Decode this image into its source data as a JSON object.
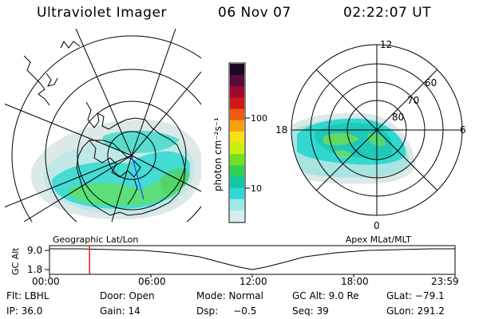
{
  "header": {
    "title": "Ultraviolet Imager",
    "date": "06 Nov 07",
    "time": "02:22:07 UT"
  },
  "colorbar": {
    "unit_label": "photon cm⁻²s⁻¹",
    "ticks": [
      "100",
      "10"
    ],
    "colors": [
      "#1a0826",
      "#5a0a36",
      "#9a0a2a",
      "#d01818",
      "#f05a10",
      "#f8a010",
      "#f8e018",
      "#c8f010",
      "#70e020",
      "#30d050",
      "#10c8a0",
      "#30d8d8",
      "#a0e8e8",
      "#d8eeee"
    ]
  },
  "left_panel": {
    "caption": "Geographic Lat/Lon"
  },
  "right_panel": {
    "caption": "Apex MLat/MLT",
    "mlt_labels": {
      "top": "12",
      "left": "18",
      "right": "6",
      "bottom": "0"
    },
    "mlat_labels": [
      "60",
      "70",
      "80"
    ]
  },
  "timeline": {
    "y_label": "GC Alt",
    "y_ticks": [
      "9.0",
      "1.8"
    ],
    "x_ticks": [
      "00:00",
      "06:00",
      "12:00",
      "18:00",
      "23:59"
    ],
    "marker_color": "#e02020",
    "marker_time_hours": 2.37
  },
  "info": {
    "flt": "Flt: LBHL",
    "door": "Door: Open",
    "mode": "Mode: Normal",
    "gc_alt": "GC Alt: 9.0 Re",
    "glat": "GLat: −79.1",
    "ip": "IP: 36.0",
    "gain": "Gain: 14",
    "dsp": "Dsp:     −0.5",
    "seq": "Seq: 39",
    "glon": "GLon: 291.2"
  }
}
